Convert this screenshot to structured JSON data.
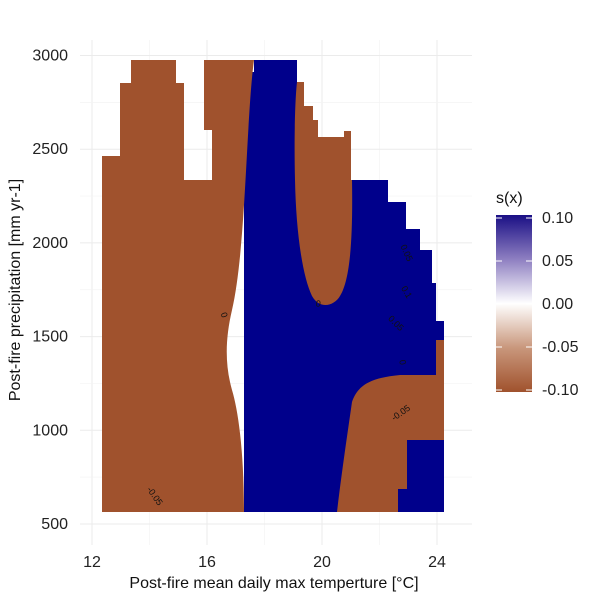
{
  "chart_data": {
    "type": "heatmap",
    "title": "",
    "xlabel": "Post-fire mean daily max temperture [°C]",
    "ylabel": "Post-fire precipitation [mm yr-1]",
    "xlim": [
      11.8,
      24.5
    ],
    "ylim": [
      400,
      3100
    ],
    "x_ticks": [
      12,
      16,
      20,
      24
    ],
    "y_ticks": [
      500,
      1000,
      1500,
      2000,
      2500,
      3000
    ],
    "grid": true,
    "fill_colors": {
      "negative": "#a0522d",
      "positive": "#00008b"
    },
    "legend": {
      "title": "s(x)",
      "placement": "right",
      "range": [
        -0.1,
        0.1
      ],
      "labels": [
        "0.10",
        "0.05",
        "0.00",
        "-0.05",
        "-0.10"
      ],
      "values": [
        0.1,
        0.05,
        0,
        -0.05,
        -0.1
      ],
      "colors": [
        "#1a0f85",
        "#8e7fc1",
        "#ffffff",
        "#c9977c",
        "#a0522d"
      ]
    },
    "contour_labels": [
      {
        "text": "-0.05",
        "x": 14.1,
        "y": 640,
        "rotate": 55
      },
      {
        "text": "0",
        "x": 16.5,
        "y": 1610,
        "rotate": 70
      },
      {
        "text": "0",
        "x": 19.85,
        "y": 1660,
        "rotate": 10
      },
      {
        "text": "0.05",
        "x": 22.85,
        "y": 1940,
        "rotate": 65
      },
      {
        "text": "0.1",
        "x": 22.85,
        "y": 1730,
        "rotate": 60
      },
      {
        "text": "0.05",
        "x": 22.5,
        "y": 1560,
        "rotate": 45
      },
      {
        "text": "0",
        "x": 22.7,
        "y": 1360,
        "rotate": 80
      },
      {
        "text": "-0.05",
        "x": 22.8,
        "y": 1080,
        "rotate": -35
      }
    ]
  }
}
